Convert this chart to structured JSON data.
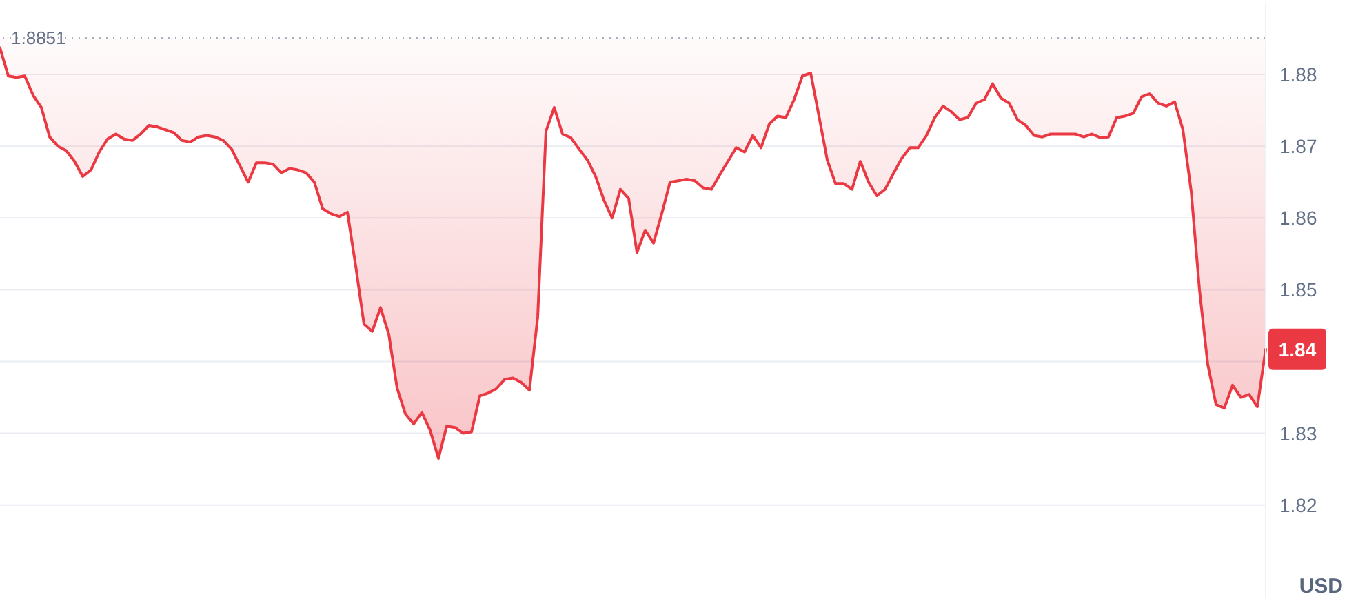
{
  "chart_data": {
    "type": "line",
    "ylabel": "USD",
    "categories": [
      null,
      null,
      null,
      null,
      null,
      null,
      null,
      null,
      null,
      null,
      null,
      null,
      null,
      null,
      null,
      null,
      null,
      null,
      null,
      null,
      null,
      null,
      null,
      null,
      null,
      null,
      null,
      null,
      null,
      null,
      null,
      null,
      null,
      null,
      null,
      null,
      null,
      null,
      null,
      null,
      null,
      null,
      null,
      null,
      null,
      null,
      null,
      null,
      null,
      null,
      null,
      null,
      null,
      null,
      null,
      null,
      null,
      null,
      null,
      null,
      null,
      null,
      null,
      null,
      null,
      null,
      null,
      null,
      null,
      null,
      null,
      null,
      null,
      null,
      null,
      null,
      null,
      null,
      null,
      null,
      null,
      null,
      null,
      null,
      null,
      null,
      null,
      null,
      null,
      null,
      null,
      null,
      null,
      null,
      null,
      null,
      null,
      null,
      null,
      null,
      null,
      null,
      null,
      null,
      null,
      null,
      null,
      null,
      null,
      null,
      null,
      null,
      null,
      null,
      null,
      null,
      null,
      null,
      null,
      null,
      null,
      null,
      null,
      null,
      null,
      null,
      null,
      null,
      null,
      null,
      null,
      null,
      null,
      null,
      null,
      null,
      null,
      null,
      null,
      null,
      null,
      null,
      null,
      null,
      null,
      null,
      null,
      null,
      null,
      null,
      null,
      null,
      null,
      null
    ],
    "series": [
      {
        "color": "#ea3943",
        "values": [
          1.8837,
          1.8798,
          1.8796,
          1.8798,
          1.8771,
          1.8754,
          1.8713,
          1.87,
          1.8694,
          1.8679,
          1.8658,
          1.8667,
          1.8692,
          1.871,
          1.8717,
          1.871,
          1.8708,
          1.8717,
          1.8729,
          1.8727,
          1.8723,
          1.8719,
          1.8708,
          1.8706,
          1.8713,
          1.8715,
          1.8713,
          1.8708,
          1.8696,
          1.8673,
          1.865,
          1.8677,
          1.8677,
          1.8675,
          1.8663,
          1.8669,
          1.8667,
          1.8663,
          1.865,
          1.8613,
          1.8606,
          1.8602,
          1.8608,
          1.8533,
          1.8452,
          1.8442,
          1.8475,
          1.8438,
          1.8363,
          1.8327,
          1.8313,
          1.8329,
          1.8304,
          1.8265,
          1.831,
          1.8308,
          1.83,
          1.8302,
          1.8352,
          1.8356,
          1.8362,
          1.8375,
          1.8377,
          1.8371,
          1.836,
          1.8462,
          1.8721,
          1.8754,
          1.8717,
          1.8712,
          1.8696,
          1.8681,
          1.8658,
          1.8625,
          1.86,
          1.864,
          1.8627,
          1.8552,
          1.8583,
          1.8565,
          1.8606,
          1.865,
          1.8652,
          1.8654,
          1.8652,
          1.8642,
          1.864,
          1.866,
          1.8679,
          1.8698,
          1.8692,
          1.8715,
          1.8698,
          1.8731,
          1.8742,
          1.874,
          1.8765,
          1.8798,
          1.8802,
          1.8742,
          1.8681,
          1.8648,
          1.8648,
          1.864,
          1.8679,
          1.865,
          1.8631,
          1.864,
          1.8662,
          1.8683,
          1.8698,
          1.8698,
          1.8715,
          1.874,
          1.8756,
          1.8748,
          1.8737,
          1.874,
          1.876,
          1.8765,
          1.8787,
          1.8767,
          1.876,
          1.8737,
          1.8729,
          1.8715,
          1.8713,
          1.8717,
          1.8717,
          1.8717,
          1.8717,
          1.8713,
          1.8717,
          1.8712,
          1.8713,
          1.874,
          1.8742,
          1.8746,
          1.8769,
          1.8773,
          1.876,
          1.8756,
          1.8762,
          1.8723,
          1.8637,
          1.85,
          1.8396,
          1.834,
          1.8335,
          1.8367,
          1.835,
          1.8354,
          1.8337,
          1.8417
        ],
        "lower": [
          1.8837,
          1.8798,
          1.8796,
          1.8798,
          1.8771,
          1.8754,
          1.8713,
          1.87,
          1.8694,
          1.8679,
          1.8658,
          1.8667,
          1.8692,
          1.871,
          1.8717,
          1.871,
          1.8708,
          1.8717,
          1.8729,
          1.8727,
          1.8723,
          1.8719,
          1.8708,
          1.8706,
          1.8713,
          1.8715,
          1.8713,
          1.8708,
          1.8696,
          1.8673,
          1.865,
          1.8677,
          1.8677,
          1.8675,
          1.8663,
          1.8669,
          1.8667,
          1.8663,
          1.865,
          1.8613,
          1.8606,
          1.8602,
          1.8608,
          1.8533,
          1.8452,
          1.8442,
          1.8475,
          1.8438,
          1.8363,
          1.8327,
          1.8313,
          1.8329,
          1.8304,
          1.8265,
          1.831,
          1.8308,
          1.83,
          1.8302,
          1.8352,
          1.8356,
          1.8362,
          1.8375,
          1.8377,
          1.8371,
          1.836,
          1.8462,
          1.8721,
          1.8754,
          1.8717,
          1.8712,
          1.8696,
          1.8681,
          1.8658,
          1.8625,
          1.86,
          1.864,
          1.8627,
          1.8552,
          1.8583,
          1.8565,
          1.8606,
          1.865,
          1.8652,
          1.8654,
          1.8652,
          1.8642,
          1.864,
          1.866,
          1.8679,
          1.8698,
          1.8692,
          1.8715,
          1.8698,
          1.8731,
          1.8742,
          1.874,
          1.8765,
          1.8798,
          1.8802,
          1.8742,
          1.8681,
          1.8648,
          1.8648,
          1.864,
          1.8679,
          1.865,
          1.8631,
          1.864,
          1.8662,
          1.8683,
          1.8698,
          1.8698,
          1.8715,
          1.874,
          1.8756,
          1.8748,
          1.8737,
          1.874,
          1.876,
          1.8765,
          1.8787,
          1.8767,
          1.876,
          1.8737,
          1.8729,
          1.8715,
          1.8713,
          1.8717,
          1.8717,
          1.8717,
          1.8717,
          1.8713,
          1.8717,
          1.8712,
          1.8713,
          1.874,
          1.8742,
          1.8746,
          1.8769,
          1.8773,
          1.876,
          1.8756,
          1.8762,
          1.8723,
          1.8637,
          1.85,
          1.8396,
          1.834,
          1.8335,
          1.8367,
          1.835,
          1.8354,
          1.8337,
          1.8417
        ],
        "upper": [
          1.8851,
          1.8851,
          1.8851,
          1.8851,
          1.8851,
          1.8851,
          1.8851,
          1.8851,
          1.8851,
          1.8851,
          1.8851,
          1.8851,
          1.8851,
          1.8851,
          1.8851,
          1.8851,
          1.8851,
          1.8851,
          1.8851,
          1.8851,
          1.8851,
          1.8851,
          1.8851,
          1.8851,
          1.8851,
          1.8851,
          1.8851,
          1.8851,
          1.8851,
          1.8851,
          1.8851,
          1.8851,
          1.8851,
          1.8851,
          1.8851,
          1.8851,
          1.8851,
          1.8851,
          1.8851,
          1.8851,
          1.8851,
          1.8851,
          1.8851,
          1.8851,
          1.8851,
          1.8851,
          1.8851,
          1.8851,
          1.8851,
          1.8851,
          1.8851,
          1.8851,
          1.8851,
          1.8851,
          1.8851,
          1.8851,
          1.8851,
          1.8851,
          1.8851,
          1.8851,
          1.8851,
          1.8851,
          1.8851,
          1.8851,
          1.8851,
          1.8851,
          1.8851,
          1.8851,
          1.8851,
          1.8851,
          1.8851,
          1.8851,
          1.8851,
          1.8851,
          1.8851,
          1.8851,
          1.8851,
          1.8851,
          1.8851,
          1.8851,
          1.8851,
          1.8851,
          1.8851,
          1.8851,
          1.8851,
          1.8851,
          1.8851,
          1.8851,
          1.8851,
          1.8851,
          1.8851,
          1.8851,
          1.8851,
          1.8851,
          1.8851,
          1.8851,
          1.8851,
          1.8851,
          1.8851,
          1.8851,
          1.8851,
          1.8851,
          1.8851,
          1.8851,
          1.8851,
          1.8851,
          1.8851,
          1.8851,
          1.8851,
          1.8851,
          1.8851,
          1.8851,
          1.8851,
          1.8851,
          1.8851,
          1.8851,
          1.8851,
          1.8851,
          1.8851,
          1.8851,
          1.8851,
          1.8851,
          1.8851,
          1.8851,
          1.8851,
          1.8851,
          1.8851,
          1.8851,
          1.8851,
          1.8851,
          1.8851,
          1.8851,
          1.8851,
          1.8851,
          1.8851,
          1.8851,
          1.8851,
          1.8851,
          1.8851,
          1.8851,
          1.8851,
          1.8851,
          1.8851,
          1.8851,
          1.8851,
          1.8851,
          1.8851,
          1.8851,
          1.8851,
          1.8851,
          1.8851,
          1.8851,
          1.8851,
          1.8851
        ]
      }
    ],
    "ylim": [
      1.807,
      1.89
    ],
    "yticks": [
      1.82,
      1.83,
      {
        "value": 1.84,
        "label": null
      },
      1.85,
      1.86,
      1.87,
      1.88
    ],
    "grid": "y",
    "ref_lines": [
      {
        "axis": "y",
        "value": 1.8851,
        "label": "1.8851",
        "line_style": "dotted",
        "color": "#a6b0c3"
      }
    ],
    "annotations": [
      {
        "text": "1.84",
        "y": 1.8417
      }
    ]
  }
}
